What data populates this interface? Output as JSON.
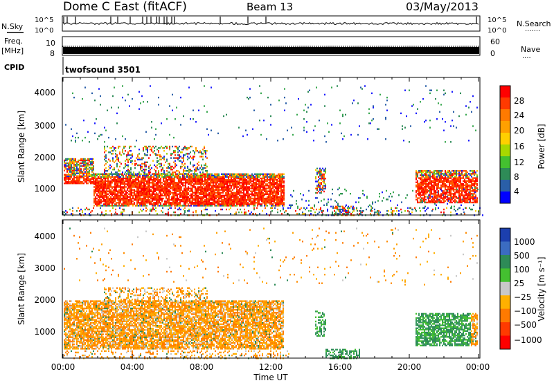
{
  "header": {
    "title": "Dome C East (fitACF)",
    "beam": "Beam 13",
    "date": "03/May/2013"
  },
  "panels": {
    "nsky_label": "N.Sky",
    "nsearch_label": "N.Search",
    "nsearch_dots": "·······",
    "freq_label_1": "Freq.",
    "freq_label_2": "[MHz]",
    "nave_label": "Nave",
    "nave_dots": "····",
    "cpid_label": "CPID",
    "cpid_value": "twofsound 3501"
  },
  "chart_data": [
    {
      "type": "line",
      "name": "noise",
      "left_ticks": [
        "10^5",
        "10^0"
      ],
      "right_ticks": [
        "10^5",
        "10^0"
      ]
    },
    {
      "type": "line",
      "name": "frequency",
      "left_ticks": [
        "10",
        "8"
      ],
      "right_ticks": [
        "60",
        "0"
      ]
    },
    {
      "type": "heatmap",
      "name": "power",
      "xlabel": "",
      "ylabel": "Slant Range [km]",
      "y_ticks": [
        "4000",
        "3000",
        "2000",
        "1000"
      ],
      "ylim": [
        180,
        4500
      ],
      "colorbar_label": "Power [dB]",
      "colorbar_ticks": [
        "28",
        "24",
        "20",
        "16",
        "12",
        "8",
        "4"
      ],
      "colorbar_colors": [
        "#ff0000",
        "#ff3a00",
        "#ff7a00",
        "#ffa000",
        "#ffd000",
        "#a8d800",
        "#44c030",
        "#2e8b57",
        "#2a5fa8",
        "#0000ff"
      ]
    },
    {
      "type": "heatmap",
      "name": "velocity",
      "xlabel": "Time UT",
      "ylabel": "Slant Range [km]",
      "y_ticks": [
        "4000",
        "3000",
        "2000",
        "1000"
      ],
      "ylim": [
        180,
        4500
      ],
      "x_ticks": [
        "00:00",
        "04:00",
        "08:00",
        "12:00",
        "16:00",
        "20:00",
        "00:00"
      ],
      "colorbar_label": "Velocity [m s⁻¹]",
      "colorbar_ticks": [
        "1000",
        "500",
        "100",
        "25",
        "−25",
        "−100",
        "−500",
        "−1000"
      ],
      "colorbar_colors": [
        "#1c3fae",
        "#3b6cc2",
        "#2e8b57",
        "#44c030",
        "#c8c8c8",
        "#ffb000",
        "#ff7a00",
        "#ff3a00",
        "#ff0000"
      ]
    }
  ]
}
